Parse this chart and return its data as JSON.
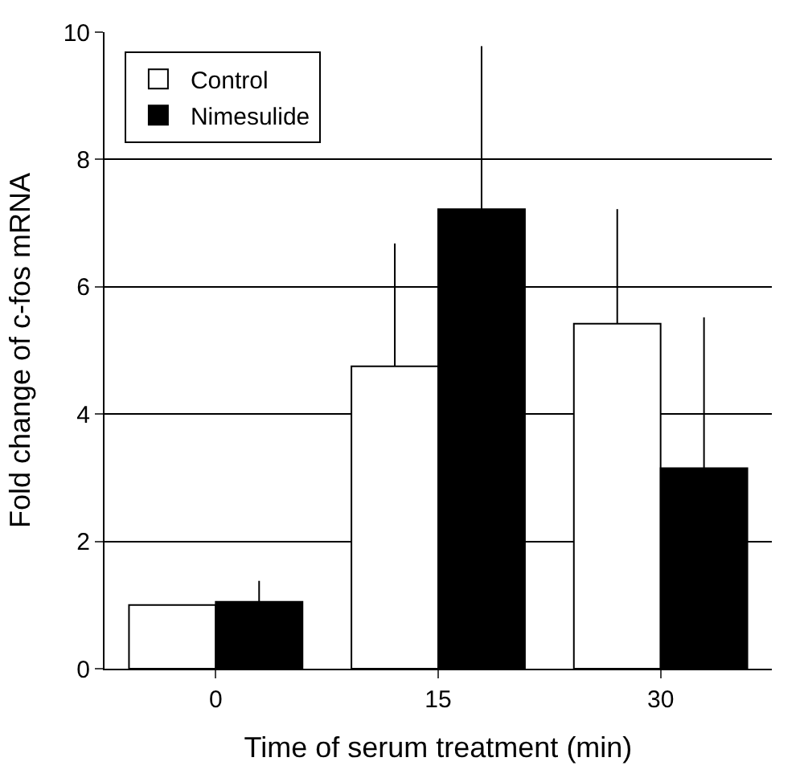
{
  "chart_data": {
    "type": "bar",
    "xlabel": "Time of serum treatment (min)",
    "ylabel": "Fold change of c-fos mRNA",
    "categories": [
      "0",
      "15",
      "30"
    ],
    "series": [
      {
        "name": "Control",
        "color": "#ffffff",
        "values": [
          1.0,
          4.75,
          5.42
        ],
        "errors": [
          null,
          [
            4.75,
            6.68
          ],
          [
            5.42,
            7.22
          ]
        ]
      },
      {
        "name": "Nimesulide",
        "color": "#000000",
        "values": [
          1.05,
          7.22,
          3.15
        ],
        "errors": [
          [
            1.05,
            1.38
          ],
          [
            7.22,
            9.78
          ],
          [
            3.15,
            5.52
          ]
        ]
      }
    ],
    "ylim": [
      0,
      10
    ],
    "yticks": [
      0,
      2,
      4,
      6,
      8,
      10
    ],
    "grid": "y",
    "legend": "top left"
  }
}
